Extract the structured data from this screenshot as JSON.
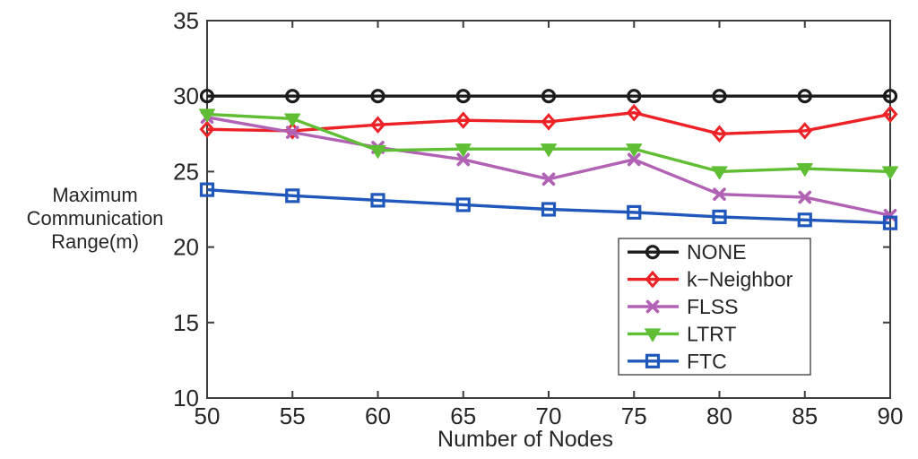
{
  "chart_data": {
    "type": "line",
    "title": "",
    "xlabel": "Number of Nodes",
    "ylabel": "Maximum Communication Range(m)",
    "ylabel_lines": [
      "Maximum",
      "Communication",
      "Range(m)"
    ],
    "x": [
      50,
      55,
      60,
      65,
      70,
      75,
      80,
      85,
      90
    ],
    "xlim": [
      50,
      90
    ],
    "ylim": [
      10,
      35
    ],
    "xticks": [
      50,
      55,
      60,
      65,
      70,
      75,
      80,
      85,
      90
    ],
    "yticks": [
      10,
      15,
      20,
      25,
      30,
      35
    ],
    "grid": false,
    "legend_position": "inside-lower-right",
    "series": [
      {
        "name": "NONE",
        "color": "#1b1b1b",
        "marker": "circle",
        "values": [
          30,
          30,
          30,
          30,
          30,
          30,
          30,
          30,
          30
        ]
      },
      {
        "name": "k−Neighbor",
        "color": "#ec2227",
        "marker": "diamond",
        "values": [
          27.8,
          27.7,
          28.1,
          28.4,
          28.3,
          28.9,
          27.5,
          27.7,
          28.8
        ]
      },
      {
        "name": "FLSS",
        "color": "#b162b4",
        "marker": "x",
        "values": [
          28.6,
          27.6,
          26.6,
          25.8,
          24.5,
          25.8,
          23.5,
          23.3,
          22.1
        ]
      },
      {
        "name": "LTRT",
        "color": "#5fbe34",
        "marker": "triangle-down",
        "values": [
          28.8,
          28.5,
          26.4,
          26.5,
          26.5,
          26.5,
          25.0,
          25.2,
          25.0
        ]
      },
      {
        "name": "FTC",
        "color": "#2057bb",
        "marker": "square",
        "values": [
          23.8,
          23.4,
          23.1,
          22.8,
          22.5,
          22.3,
          22.0,
          21.8,
          21.6
        ]
      }
    ]
  }
}
